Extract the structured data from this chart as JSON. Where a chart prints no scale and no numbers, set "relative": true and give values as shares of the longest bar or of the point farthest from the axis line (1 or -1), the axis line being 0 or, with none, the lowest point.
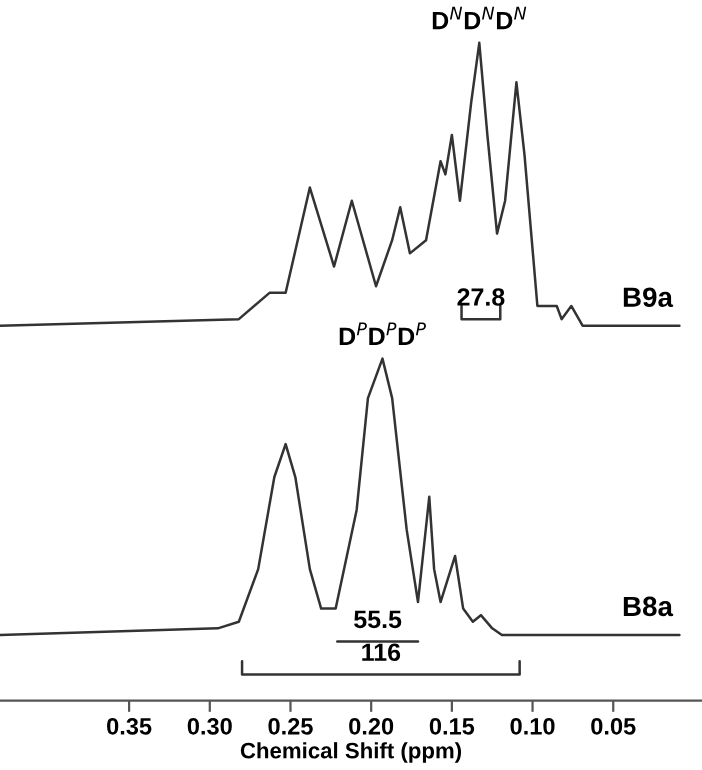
{
  "chart_data": {
    "type": "line",
    "relative": true,
    "tick_labels": "x",
    "xlim": [
      0.43,
      -0.005
    ],
    "legend": false,
    "grid": false,
    "xlabel": "Chemical Shift (ppm)",
    "xticks": [
      {
        "value": 0.35,
        "label": "0.35"
      },
      {
        "value": 0.3,
        "label": "0.30"
      },
      {
        "value": 0.25,
        "label": "0.25"
      },
      {
        "value": 0.2,
        "label": "0.20"
      },
      {
        "value": 0.15,
        "label": "0.15"
      },
      {
        "value": 0.1,
        "label": "0.10"
      },
      {
        "value": 0.05,
        "label": "0.05"
      }
    ],
    "annotations": [
      {
        "text": "D$^{N}$D$^{N}$D$^{N}$",
        "x": 0.133,
        "y": 1.0
      },
      {
        "text": "27.8",
        "x": 0.132,
        "y": 0.58
      },
      {
        "text": "D$^{P}$D$^{P}$D$^{P}$",
        "x": 0.193,
        "y": 0.52
      },
      {
        "text": "55.5",
        "x": 0.196,
        "y": 0.09
      },
      {
        "text": "116",
        "x": 0.194,
        "y": 0.04
      }
    ],
    "series": [
      {
        "name": "B9a",
        "color": "#333333",
        "x": [
          0.43,
          0.282,
          0.263,
          0.253,
          0.238,
          0.223,
          0.212,
          0.197,
          0.187,
          0.182,
          0.176,
          0.166,
          0.157,
          0.154,
          0.15,
          0.145,
          0.138,
          0.133,
          0.128,
          0.122,
          0.117,
          0.11,
          0.105,
          0.097,
          0.085,
          0.082,
          0.076,
          0.069,
          0.009
        ],
        "values": [
          0.57,
          0.58,
          0.62,
          0.62,
          0.78,
          0.66,
          0.76,
          0.63,
          0.7,
          0.75,
          0.68,
          0.7,
          0.82,
          0.8,
          0.86,
          0.76,
          0.91,
          1.0,
          0.86,
          0.71,
          0.76,
          0.94,
          0.83,
          0.6,
          0.6,
          0.58,
          0.6,
          0.57,
          0.57
        ]
      },
      {
        "name": "B8a",
        "color": "#333333",
        "x": [
          0.43,
          0.295,
          0.282,
          0.27,
          0.26,
          0.253,
          0.247,
          0.238,
          0.231,
          0.222,
          0.209,
          0.202,
          0.193,
          0.187,
          0.178,
          0.171,
          0.164,
          0.161,
          0.157,
          0.148,
          0.143,
          0.137,
          0.132,
          0.125,
          0.119,
          0.009
        ],
        "values": [
          0.1,
          0.11,
          0.12,
          0.2,
          0.34,
          0.39,
          0.34,
          0.2,
          0.14,
          0.14,
          0.29,
          0.46,
          0.52,
          0.46,
          0.26,
          0.15,
          0.31,
          0.2,
          0.15,
          0.22,
          0.14,
          0.12,
          0.13,
          0.11,
          0.1,
          0.1
        ]
      },
      {
        "color": "#333333",
        "x": [
          0.144,
          0.144,
          0.12,
          0.12
        ],
        "values": [
          0.6,
          0.58,
          0.58,
          0.6
        ]
      },
      {
        "color": "#333333",
        "x": [
          0.221,
          0.171
        ],
        "values": [
          0.09,
          0.09
        ]
      },
      {
        "color": "#333333",
        "x": [
          0.28,
          0.28,
          0.108,
          0.108
        ],
        "values": [
          0.06,
          0.04,
          0.04,
          0.06
        ]
      }
    ]
  }
}
